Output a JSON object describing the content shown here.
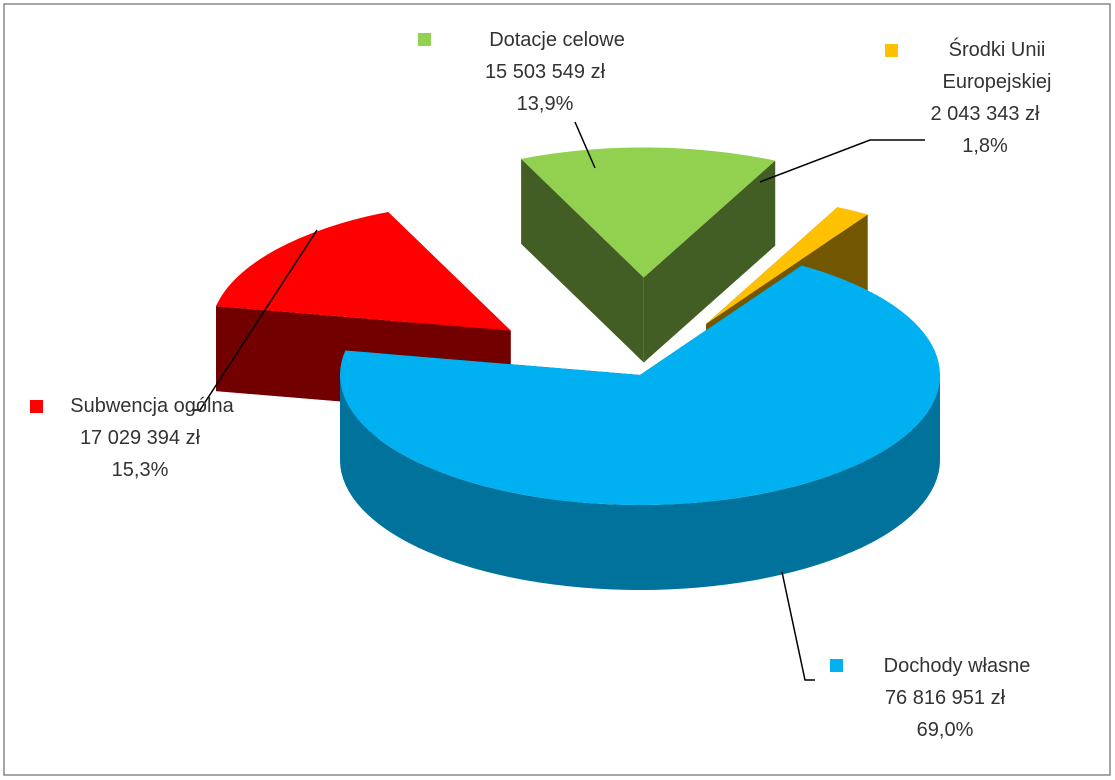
{
  "chart_data": {
    "type": "pie3d",
    "categories": [
      "Dochody własne",
      "Subwencja ogólna",
      "Dotacje celowe",
      "Środki Unii Europejskiej"
    ],
    "values": [
      76816951,
      17029394,
      15503549,
      2043343
    ],
    "value_labels": [
      "76 816 951 zł",
      "17 029 394 zł",
      "15 503 549 zł",
      "2 043 343 zł"
    ],
    "percents": [
      69.0,
      15.3,
      13.9,
      1.8
    ],
    "percent_labels": [
      "69,0%",
      "15,3%",
      "13,9%",
      "1,8%"
    ],
    "colors": [
      "#00b0f0",
      "#ff0000",
      "#92d050",
      "#ffc000"
    ]
  }
}
